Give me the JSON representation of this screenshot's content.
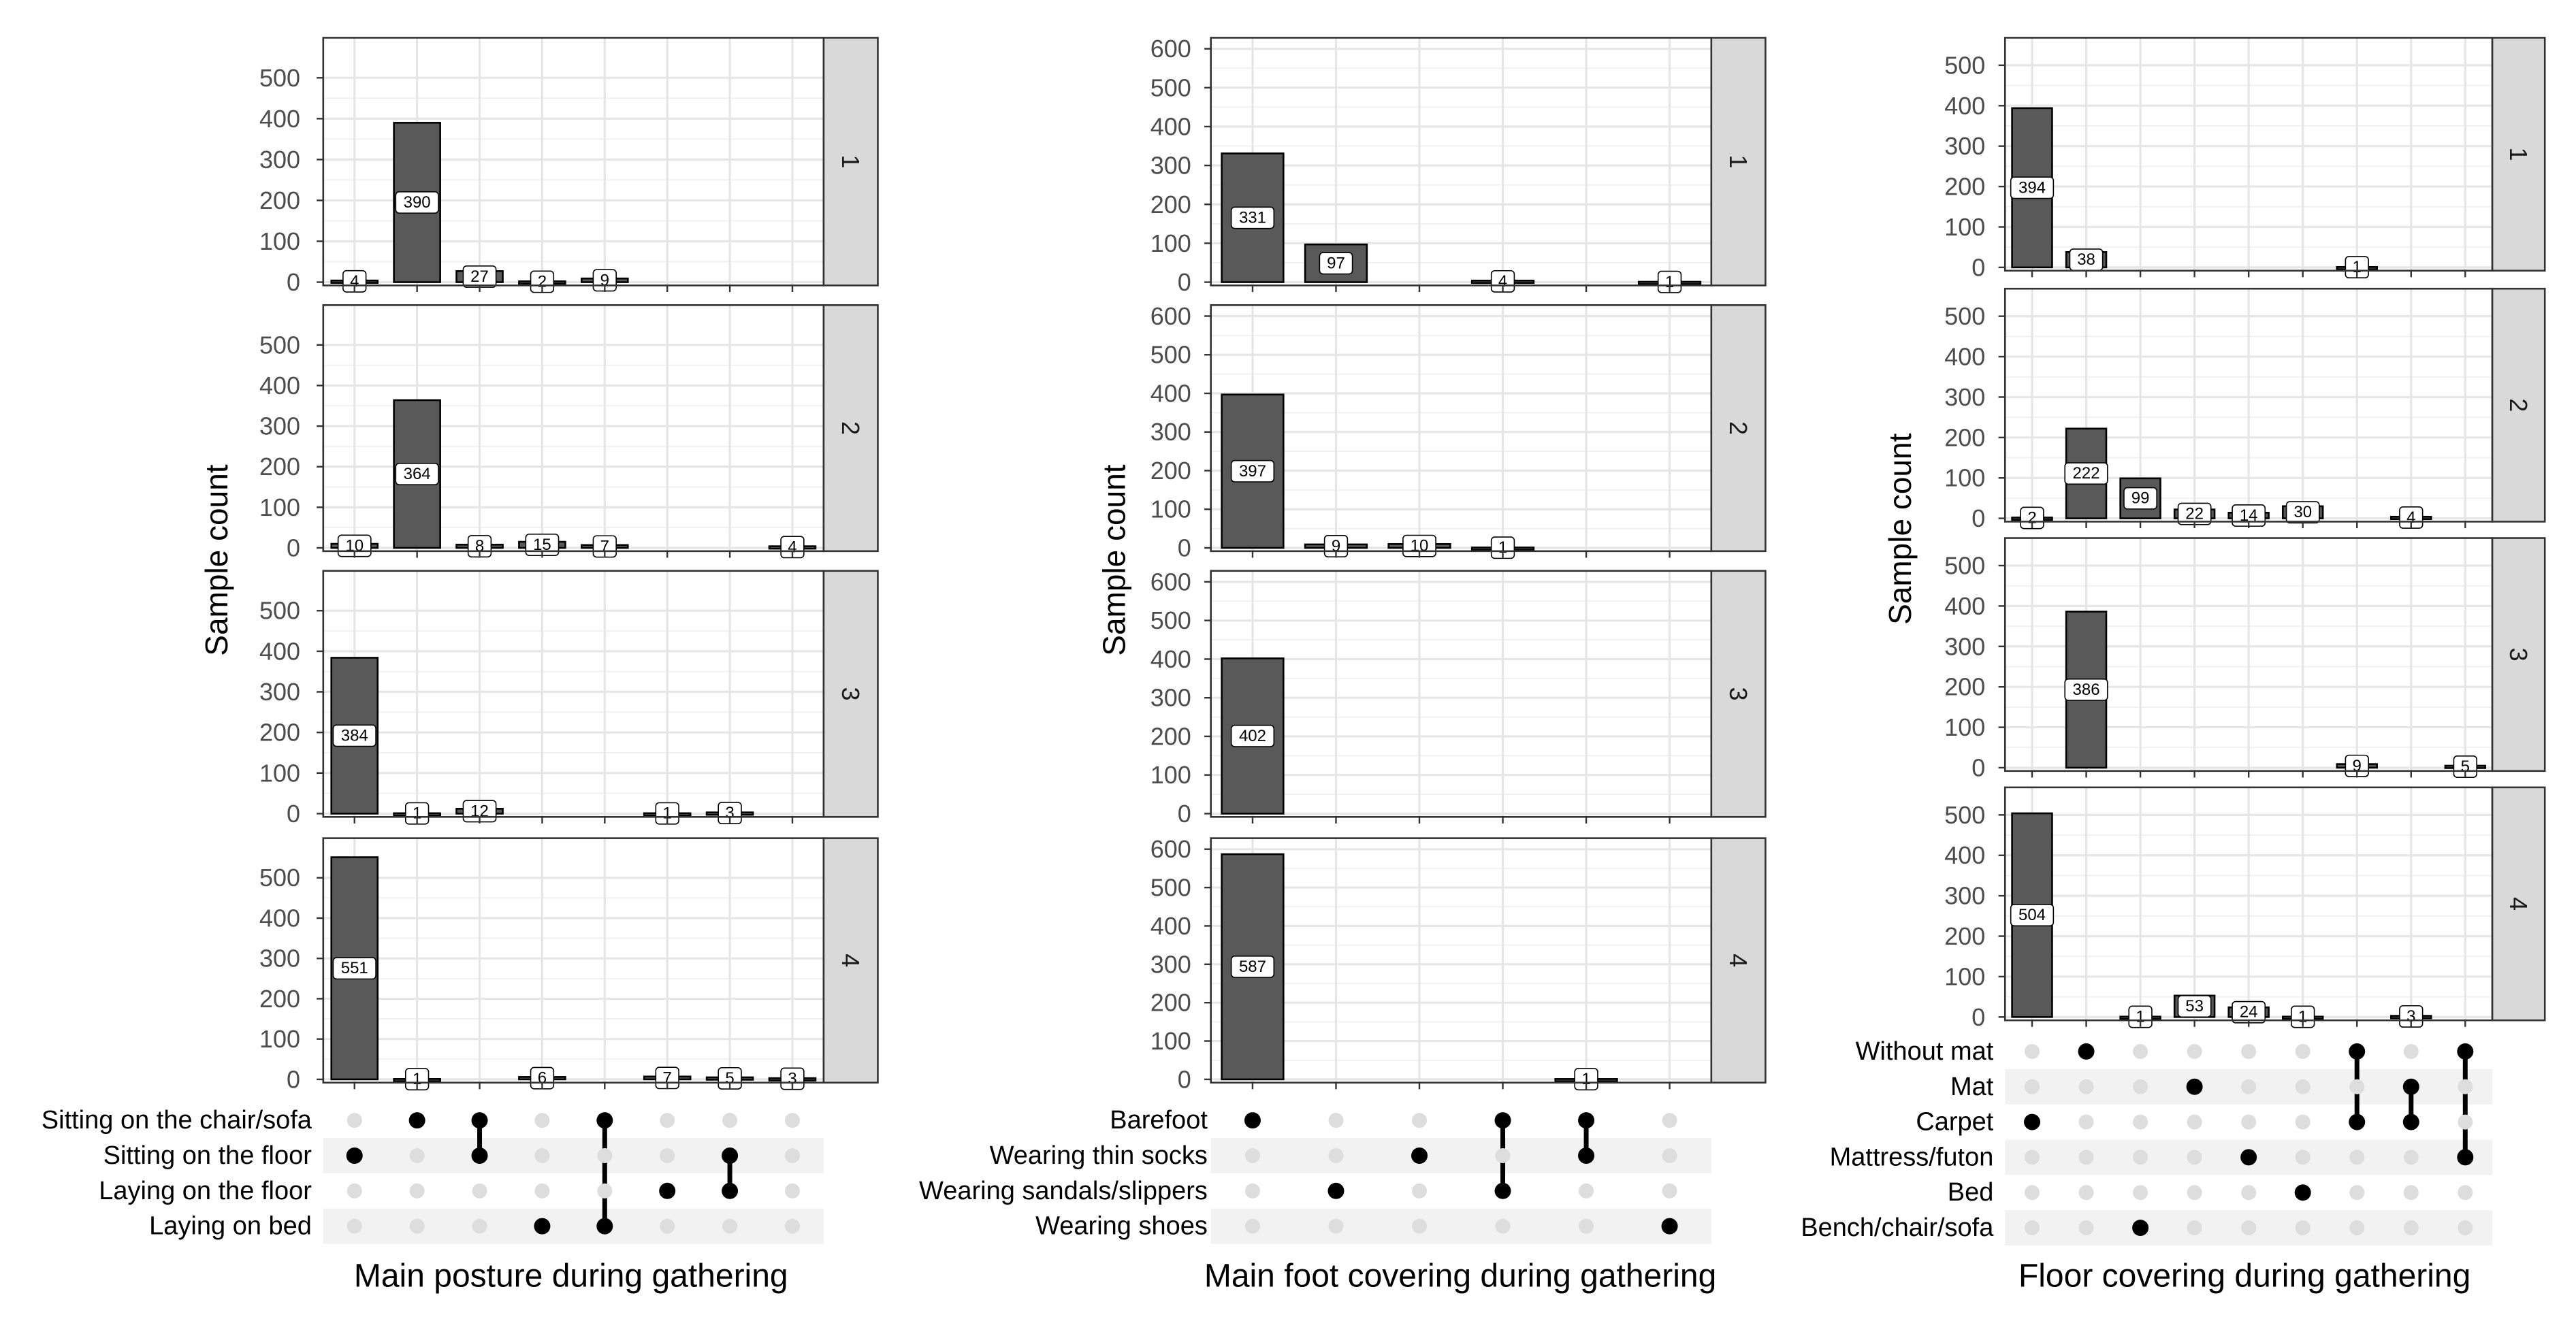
{
  "chart_data": [
    {
      "type": "bar",
      "title": "Main posture during gathering",
      "ylabel": "Sample count",
      "ylim": [
        0,
        590
      ],
      "yticks": [
        0,
        100,
        200,
        300,
        400,
        500
      ],
      "sets": [
        "Sitting on the chair/sofa",
        "Sitting on the floor",
        "Laying on the floor",
        "Laying on bed"
      ],
      "combinations": [
        [
          1
        ],
        [
          0
        ],
        [
          0,
          1
        ],
        [
          3
        ],
        [
          0,
          3
        ],
        [
          2
        ],
        [
          1,
          2
        ],
        []
      ],
      "facets": [
        {
          "label": "1",
          "values": [
            4,
            390,
            27,
            2,
            9,
            null,
            null,
            null
          ]
        },
        {
          "label": "2",
          "values": [
            10,
            364,
            8,
            15,
            7,
            null,
            null,
            4
          ]
        },
        {
          "label": "3",
          "values": [
            384,
            1,
            12,
            null,
            null,
            1,
            3,
            null
          ]
        },
        {
          "label": "4",
          "values": [
            551,
            1,
            null,
            6,
            null,
            7,
            5,
            3
          ]
        }
      ]
    },
    {
      "type": "bar",
      "title": "Main foot covering during gathering",
      "ylabel": "Sample count",
      "ylim": [
        0,
        620
      ],
      "yticks": [
        0,
        100,
        200,
        300,
        400,
        500,
        600
      ],
      "sets": [
        "Barefoot",
        "Wearing thin socks",
        "Wearing sandals/slippers",
        "Wearing shoes"
      ],
      "combinations": [
        [
          0
        ],
        [
          2
        ],
        [
          1
        ],
        [
          0,
          2
        ],
        [
          0,
          1
        ],
        [
          3
        ]
      ],
      "facets": [
        {
          "label": "1",
          "values": [
            331,
            97,
            null,
            4,
            null,
            1
          ]
        },
        {
          "label": "2",
          "values": [
            397,
            9,
            10,
            1,
            null,
            null
          ]
        },
        {
          "label": "3",
          "values": [
            402,
            null,
            null,
            null,
            null,
            null
          ]
        },
        {
          "label": "4",
          "values": [
            587,
            null,
            null,
            null,
            1,
            null
          ]
        }
      ]
    },
    {
      "type": "bar",
      "title": "Floor covering during gathering",
      "ylabel": "Sample count",
      "ylim": [
        0,
        560
      ],
      "yticks": [
        0,
        100,
        200,
        300,
        400,
        500
      ],
      "sets": [
        "Without mat",
        "Mat",
        "Carpet",
        "Mattress/futon",
        "Bed",
        "Bench/chair/sofa"
      ],
      "combinations": [
        [
          2
        ],
        [
          0
        ],
        [
          5
        ],
        [
          1
        ],
        [
          3
        ],
        [
          4
        ],
        [
          0,
          2
        ],
        [
          1,
          2
        ],
        [
          0,
          3
        ]
      ],
      "facets": [
        {
          "label": "1",
          "values": [
            394,
            38,
            null,
            null,
            null,
            null,
            1,
            null,
            null
          ]
        },
        {
          "label": "2",
          "values": [
            2,
            222,
            99,
            22,
            14,
            30,
            null,
            4,
            null
          ]
        },
        {
          "label": "3",
          "values": [
            null,
            386,
            null,
            null,
            null,
            null,
            9,
            null,
            5
          ]
        },
        {
          "label": "4",
          "values": [
            504,
            null,
            1,
            53,
            24,
            1,
            null,
            3,
            null
          ]
        }
      ]
    }
  ]
}
